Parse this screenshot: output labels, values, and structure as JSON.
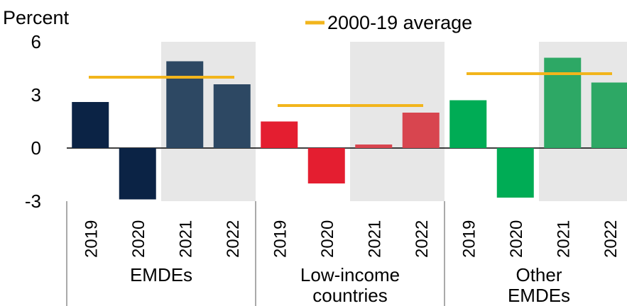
{
  "chart_data": {
    "type": "bar",
    "ylabel": "Percent",
    "ylim": [
      -3,
      6
    ],
    "yticks": [
      "6",
      "3",
      "0",
      "-3"
    ],
    "ytick_values": [
      6,
      3,
      0,
      -3
    ],
    "legend": {
      "label": "2000-19 average",
      "color": "#F2B51C",
      "placement": "top-center"
    },
    "shaded_years": [
      "2021",
      "2022"
    ],
    "shade_color": "#E7E7E7",
    "groups": [
      {
        "name": "EMDEs",
        "years": [
          "2019",
          "2020",
          "2021",
          "2022"
        ],
        "values": [
          2.6,
          -2.9,
          4.9,
          3.6
        ],
        "colors": [
          "#0B2345",
          "#0B2345",
          "#2D4863",
          "#2D4863"
        ],
        "average": 4.0
      },
      {
        "name": "Low-income countries",
        "label_lines": [
          "Low-income",
          "countries"
        ],
        "years": [
          "2019",
          "2020",
          "2021",
          "2022"
        ],
        "values": [
          1.5,
          -2.0,
          0.2,
          2.0
        ],
        "colors": [
          "#E41E30",
          "#E41E30",
          "#D8454F",
          "#D8454F"
        ],
        "average": 2.4
      },
      {
        "name": "Other EMDEs",
        "label_lines": [
          "Other",
          "EMDEs"
        ],
        "years": [
          "2019",
          "2020",
          "2021",
          "2022"
        ],
        "values": [
          2.7,
          -2.8,
          5.1,
          3.7
        ],
        "colors": [
          "#00AC55",
          "#00AC55",
          "#2DA865",
          "#2DA865"
        ],
        "average": 4.2
      }
    ]
  }
}
